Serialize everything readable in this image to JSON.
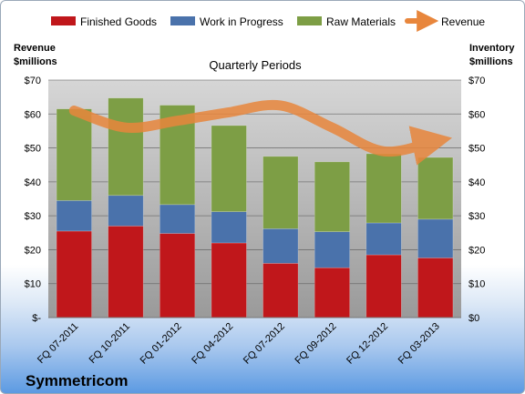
{
  "chart_data": {
    "type": "bar",
    "stacked": true,
    "title": "Quarterly Periods",
    "company": "Symmetricom",
    "left_axis_title": [
      "Revenue",
      "$millions"
    ],
    "right_axis_title": [
      "Inventory",
      "$millions"
    ],
    "categories": [
      "FQ 07-2011",
      "FQ 10-2011",
      "FQ 01-2012",
      "FQ 04-2012",
      "FQ 07-2012",
      "FQ 09-2012",
      "FQ 12-2012",
      "FQ 03-2013"
    ],
    "series": [
      {
        "name": "Finished Goods",
        "color": "#c0171b",
        "values": [
          25.5,
          27.0,
          24.8,
          22.0,
          16.0,
          14.7,
          18.5,
          17.6
        ]
      },
      {
        "name": "Work in Progress",
        "color": "#4a72ab",
        "values": [
          9.0,
          9.0,
          8.5,
          9.2,
          10.2,
          10.6,
          9.4,
          11.4
        ]
      },
      {
        "name": "Raw Materials",
        "color": "#7d9e45",
        "values": [
          27.0,
          28.7,
          29.3,
          25.4,
          21.3,
          20.6,
          20.4,
          18.2
        ]
      }
    ],
    "line_series": {
      "name": "Revenue",
      "color": "#e8863c",
      "values": [
        61,
        56,
        58,
        60.5,
        62.5,
        56,
        49,
        52
      ]
    },
    "left_tick_labels": [
      "$-",
      "$10",
      "$20",
      "$30",
      "$40",
      "$50",
      "$60",
      "$70"
    ],
    "right_tick_labels": [
      "$0",
      "$10",
      "$20",
      "$30",
      "$40",
      "$50",
      "$60",
      "$70"
    ],
    "ylim": [
      0,
      70
    ],
    "grid": true,
    "legend_position": "top"
  }
}
